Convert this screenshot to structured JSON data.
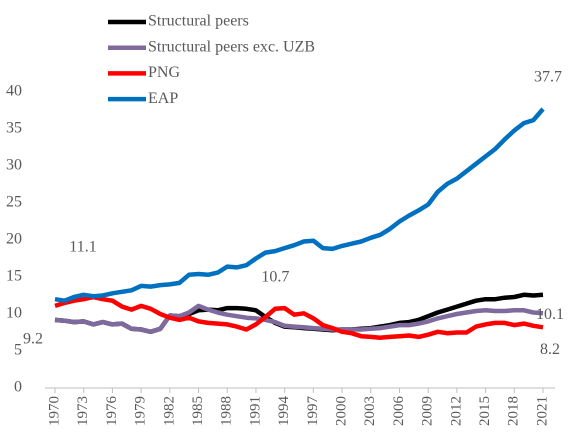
{
  "chart_data": {
    "type": "line",
    "x": [
      1970,
      1971,
      1972,
      1973,
      1974,
      1975,
      1976,
      1977,
      1978,
      1979,
      1980,
      1981,
      1982,
      1983,
      1984,
      1985,
      1986,
      1987,
      1988,
      1989,
      1990,
      1991,
      1992,
      1993,
      1994,
      1995,
      1996,
      1997,
      1998,
      1999,
      2000,
      2001,
      2002,
      2003,
      2004,
      2005,
      2006,
      2007,
      2008,
      2009,
      2010,
      2011,
      2012,
      2013,
      2014,
      2015,
      2016,
      2017,
      2018,
      2019,
      2020,
      2021
    ],
    "xlim": [
      1970,
      2021
    ],
    "xticks": [
      1970,
      1973,
      1976,
      1979,
      1982,
      1985,
      1988,
      1991,
      1994,
      1997,
      2000,
      2003,
      2006,
      2009,
      2012,
      2015,
      2018,
      2021
    ],
    "ylim": [
      0,
      40
    ],
    "yticks": [
      0,
      5,
      10,
      15,
      20,
      25,
      30,
      35,
      40
    ],
    "grid": false,
    "legend": "top-left",
    "series": [
      {
        "name": "Structural peers",
        "color": "#000000",
        "values": [
          9.2,
          9.1,
          8.9,
          9.0,
          8.6,
          8.9,
          8.6,
          8.7,
          8.0,
          7.9,
          7.6,
          8.0,
          9.8,
          9.7,
          10.0,
          10.5,
          10.6,
          10.5,
          10.8,
          10.8,
          10.7,
          10.5,
          9.6,
          8.8,
          8.3,
          8.2,
          8.1,
          8.0,
          7.9,
          7.8,
          7.9,
          7.9,
          8.0,
          8.1,
          8.3,
          8.5,
          8.8,
          8.9,
          9.2,
          9.7,
          10.2,
          10.6,
          11.0,
          11.4,
          11.8,
          12.0,
          12.0,
          12.2,
          12.3,
          12.6,
          12.5,
          12.6
        ],
        "value_labels": [
          null,
          null,
          null,
          null,
          null,
          null,
          null,
          null,
          null,
          null,
          null,
          null,
          null,
          null,
          null,
          null,
          null,
          null,
          null,
          null,
          "10.7",
          null,
          null,
          null,
          null,
          null,
          null,
          null,
          null,
          null,
          null,
          null,
          null,
          null,
          null,
          null,
          null,
          null,
          null,
          null,
          null,
          null,
          null,
          null,
          null,
          null,
          null,
          null,
          null,
          null,
          null,
          null
        ]
      },
      {
        "name": "Structural peers exc. UZB",
        "color": "#7f6a9e",
        "values": [
          9.2,
          9.1,
          8.9,
          9.0,
          8.6,
          8.9,
          8.6,
          8.7,
          8.0,
          7.9,
          7.6,
          8.0,
          9.8,
          9.7,
          10.2,
          11.1,
          10.6,
          10.2,
          9.9,
          9.7,
          9.5,
          9.4,
          9.2,
          8.9,
          8.4,
          8.3,
          8.2,
          8.1,
          8.0,
          7.9,
          7.9,
          7.9,
          7.9,
          8.0,
          8.1,
          8.3,
          8.5,
          8.5,
          8.7,
          9.0,
          9.4,
          9.7,
          10.0,
          10.2,
          10.4,
          10.5,
          10.4,
          10.4,
          10.5,
          10.5,
          10.2,
          10.1
        ],
        "value_labels": [
          "9.2",
          null,
          null,
          null,
          null,
          null,
          null,
          null,
          null,
          null,
          null,
          null,
          null,
          null,
          null,
          null,
          null,
          null,
          null,
          null,
          null,
          null,
          null,
          null,
          null,
          null,
          null,
          null,
          null,
          null,
          null,
          null,
          null,
          null,
          null,
          null,
          null,
          null,
          null,
          null,
          null,
          null,
          null,
          null,
          null,
          null,
          null,
          null,
          null,
          null,
          null,
          "10.1"
        ]
      },
      {
        "name": "PNG",
        "color": "#ff0000",
        "values": [
          11.1,
          11.5,
          11.8,
          12.0,
          12.3,
          12.0,
          11.8,
          11.0,
          10.6,
          11.1,
          10.7,
          10.0,
          9.5,
          9.2,
          9.5,
          9.0,
          8.8,
          8.7,
          8.6,
          8.3,
          7.9,
          8.6,
          9.6,
          10.7,
          10.8,
          9.9,
          10.1,
          9.4,
          8.5,
          8.1,
          7.6,
          7.4,
          7.0,
          6.9,
          6.8,
          6.9,
          7.0,
          7.1,
          6.9,
          7.2,
          7.6,
          7.4,
          7.5,
          7.5,
          8.3,
          8.6,
          8.8,
          8.8,
          8.5,
          8.7,
          8.4,
          8.2
        ],
        "value_labels": [
          "11.1",
          null,
          null,
          null,
          null,
          null,
          null,
          null,
          null,
          null,
          null,
          null,
          null,
          null,
          null,
          null,
          null,
          null,
          null,
          null,
          null,
          null,
          null,
          null,
          null,
          null,
          null,
          null,
          null,
          null,
          null,
          null,
          null,
          null,
          null,
          null,
          null,
          null,
          null,
          null,
          null,
          null,
          null,
          null,
          null,
          null,
          null,
          null,
          null,
          null,
          null,
          "8.2"
        ]
      },
      {
        "name": "EAP",
        "color": "#0070c0",
        "values": [
          12.0,
          11.8,
          12.3,
          12.6,
          12.4,
          12.5,
          12.8,
          13.0,
          13.2,
          13.8,
          13.7,
          13.9,
          14.0,
          14.2,
          15.3,
          15.4,
          15.3,
          15.6,
          16.4,
          16.3,
          16.6,
          17.5,
          18.3,
          18.5,
          18.9,
          19.3,
          19.8,
          19.9,
          18.9,
          18.8,
          19.2,
          19.5,
          19.8,
          20.3,
          20.7,
          21.5,
          22.5,
          23.3,
          24.0,
          24.8,
          26.5,
          27.6,
          28.3,
          29.3,
          30.3,
          31.3,
          32.3,
          33.6,
          34.8,
          35.8,
          36.2,
          37.7
        ],
        "value_labels": [
          null,
          null,
          null,
          null,
          null,
          null,
          null,
          null,
          null,
          null,
          null,
          null,
          null,
          null,
          null,
          null,
          null,
          null,
          null,
          null,
          null,
          null,
          null,
          null,
          null,
          null,
          null,
          null,
          null,
          null,
          null,
          null,
          null,
          null,
          null,
          null,
          null,
          null,
          null,
          null,
          null,
          null,
          null,
          null,
          null,
          null,
          null,
          null,
          null,
          null,
          null,
          "37.7"
        ]
      }
    ]
  }
}
